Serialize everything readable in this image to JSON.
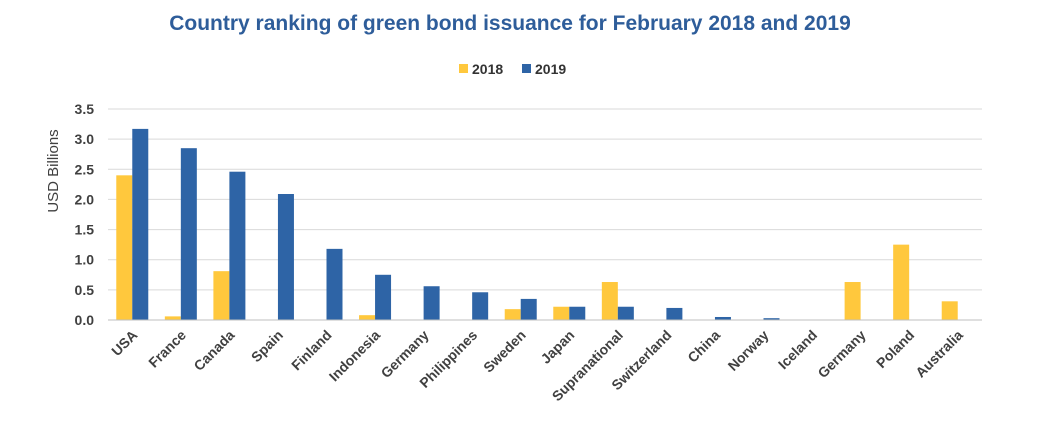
{
  "chart_data": {
    "type": "bar",
    "title": "Country ranking of green bond issuance for February 2018 and 2019",
    "ylabel": "USD Billions",
    "xlabel": "",
    "ylim": [
      0,
      3.5
    ],
    "yticks": [
      "0.0",
      "0.5",
      "1.0",
      "1.5",
      "2.0",
      "2.5",
      "3.0",
      "3.5"
    ],
    "grid": true,
    "legend_position": "top-center",
    "categories": [
      "USA",
      "France",
      "Canada",
      "Spain",
      "Finland",
      "Indonesia",
      "Germany",
      "Philippines",
      "Sweden",
      "Japan",
      "Supranational",
      "Switzerland",
      "China",
      "Norway",
      "Iceland",
      "Germany",
      "Poland",
      "Australia"
    ],
    "series": [
      {
        "name": "2018",
        "color": "#ffc83d",
        "values": [
          2.4,
          0.06,
          0.81,
          0,
          0,
          0.08,
          0,
          0,
          0.18,
          0.22,
          0.63,
          0,
          0,
          0,
          0,
          0.63,
          1.25,
          0.31
        ]
      },
      {
        "name": "2019",
        "color": "#2e64a6",
        "values": [
          3.17,
          2.85,
          2.46,
          2.09,
          1.18,
          0.75,
          0.56,
          0.46,
          0.35,
          0.22,
          0.22,
          0.2,
          0.05,
          0.03,
          0,
          0,
          0,
          0
        ]
      }
    ]
  }
}
